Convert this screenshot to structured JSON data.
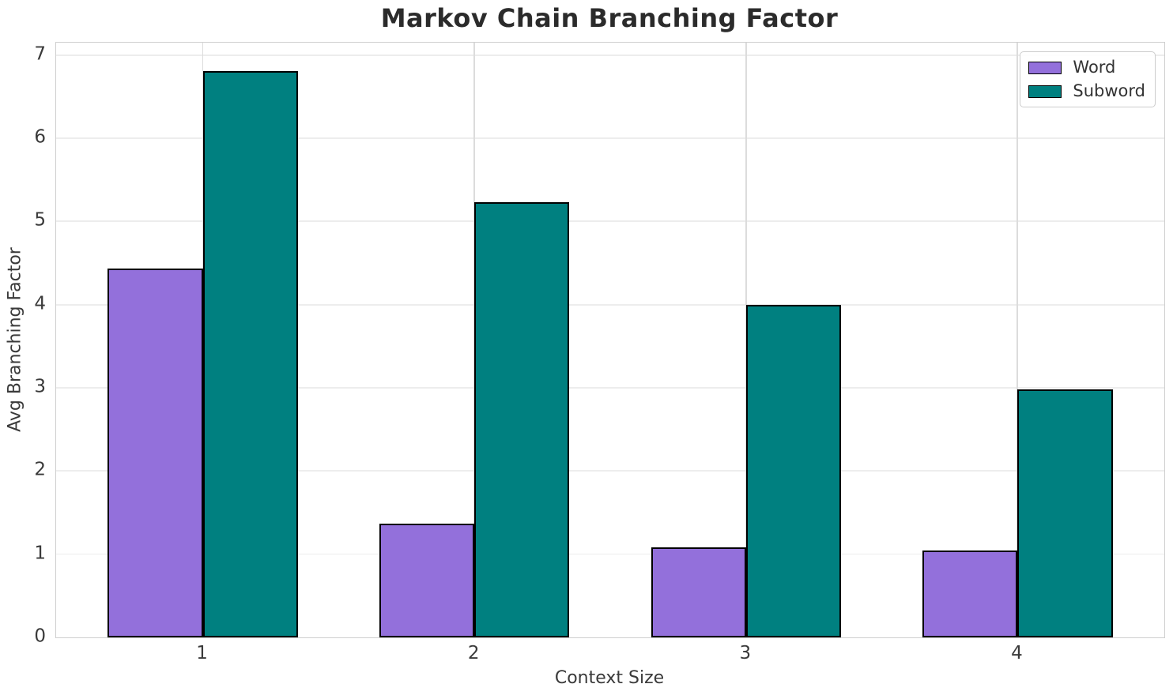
{
  "chart_data": {
    "type": "bar",
    "title": "Markov Chain Branching Factor",
    "xlabel": "Context Size",
    "ylabel": "Avg Branching Factor",
    "categories": [
      "1",
      "2",
      "3",
      "4"
    ],
    "x_positions": [
      1,
      2,
      3,
      4
    ],
    "series": [
      {
        "name": "Word",
        "color": "#9370DB",
        "values": [
          4.43,
          1.37,
          1.08,
          1.04
        ]
      },
      {
        "name": "Subword",
        "color": "#008080",
        "values": [
          6.81,
          5.23,
          4.0,
          2.98
        ]
      }
    ],
    "bar_width": 0.35,
    "bar_edge_color": "#000000",
    "xlim": [
      0.46,
      4.54
    ],
    "ylim": [
      0,
      7.15
    ],
    "yticks": [
      0,
      1,
      2,
      3,
      4,
      5,
      6,
      7
    ],
    "grid": true,
    "legend": {
      "position": "upper right",
      "entries": [
        "Word",
        "Subword"
      ]
    }
  },
  "colors": {
    "background": "#ffffff",
    "grid_horizontal": "#ededed",
    "grid_vertical": "#dcdcdc",
    "spine": "#cfcfcf",
    "tick_text": "#3a3a3a",
    "title_text": "#2b2b2b"
  }
}
